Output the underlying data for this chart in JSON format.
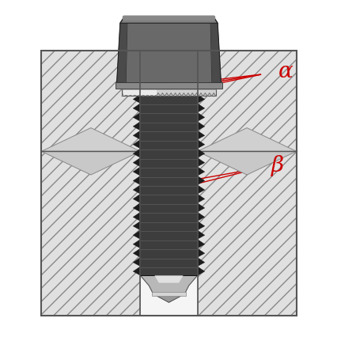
{
  "bg_color": "#ffffff",
  "alpha_label": "α",
  "beta_label": "β",
  "label_color": "#cc0000",
  "arrow_color": "#cc0000",
  "bolt_head_main": "#555555",
  "bolt_head_side": "#3a3a3a",
  "bolt_head_top": "#888888",
  "bolt_head_highlight": "#777777",
  "shank_color": "#3d3d3d",
  "thread_dark": "#1a1a1a",
  "thread_mid": "#444444",
  "washer_color": "#c8c8c8",
  "washer_light": "#e8e8e8",
  "washer_dark": "#aaaaaa",
  "tip_light": "#d0d0d0",
  "tip_mid": "#b0b0b0",
  "tip_dark": "#888888",
  "material_color": "#e0e0e0",
  "material_edge": "#555555",
  "hole_inner": "#f5f5f5",
  "figsize": [
    4.27,
    4.27
  ],
  "dpi": 100
}
